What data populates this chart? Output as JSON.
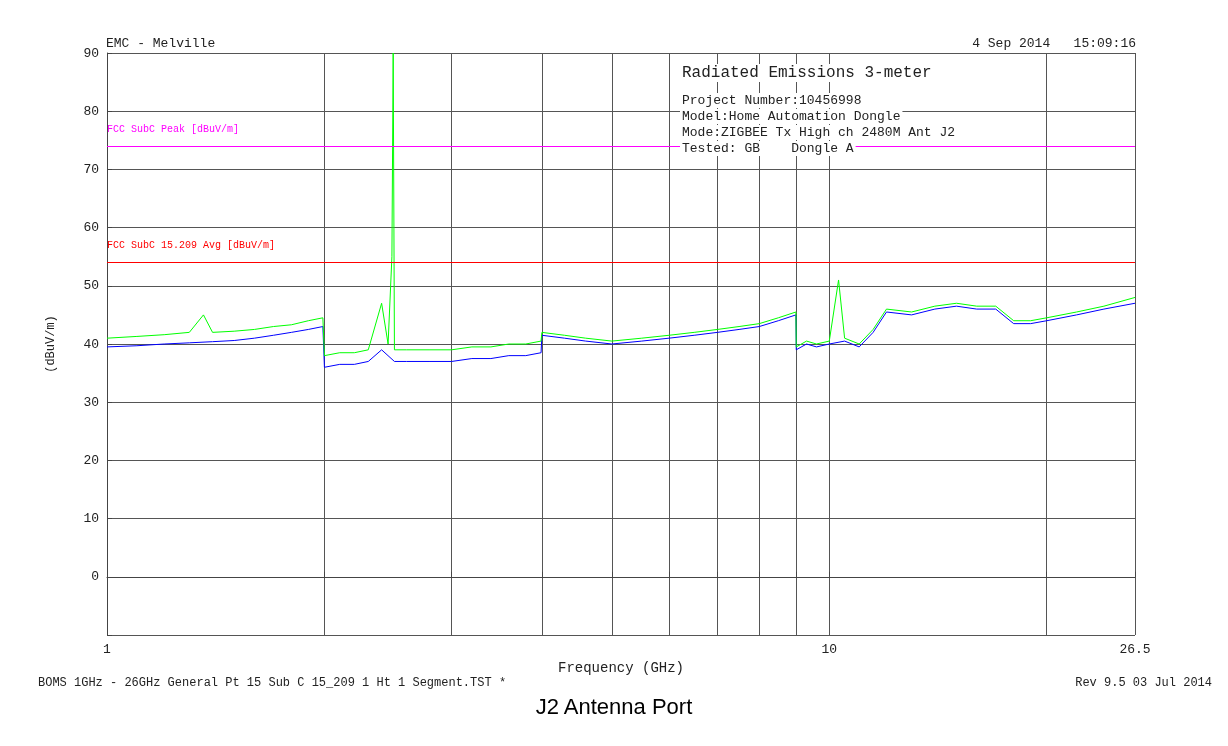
{
  "chart_data": {
    "type": "line",
    "title": "J2 Antenna Port",
    "xlabel": "Frequency (GHz)",
    "ylabel": "(dBuV/m)",
    "annotations": [
      "EMC - Melville",
      "4 Sep 2014   15:09:16",
      "Radiated Emissions 3-meter",
      "Project Number:10456998",
      "Model:Home Automation Dongle",
      "Mode:ZIGBEE Tx High ch 2480M Ant J2",
      "Tested: GB    Dongle A",
      "BOMS 1GHz - 26GHz General Pt 15 Sub C 15_209 1 Ht 1 Segment.TST *",
      "Rev 9.5 03 Jul 2014"
    ],
    "log": "x",
    "grid": true,
    "marker": "none",
    "line_style": "solid",
    "xlim": [
      1,
      26.5
    ],
    "xticks": [
      1,
      {
        "value": 2,
        "label": null
      },
      {
        "value": 3,
        "label": null
      },
      {
        "value": 4,
        "label": null
      },
      {
        "value": 5,
        "label": null
      },
      {
        "value": 6,
        "label": null
      },
      {
        "value": 7,
        "label": null
      },
      {
        "value": 8,
        "label": null
      },
      {
        "value": 9,
        "label": null
      },
      10,
      {
        "value": 20,
        "label": null
      },
      26.5
    ],
    "ylim": [
      -10,
      90
    ],
    "yticks": [
      {
        "value": -10,
        "label": null
      },
      0,
      10,
      20,
      30,
      40,
      50,
      60,
      70,
      80,
      90
    ],
    "ref_lines": [
      {
        "axis": "y",
        "value": 74,
        "label": "FCC SubC Peak [dBuV/m]",
        "color": "#ff00ff"
      },
      {
        "axis": "y",
        "value": 54,
        "label": "FCC SubC 15.209 Avg [dBuV/m]",
        "color": "#ff0000"
      }
    ],
    "series": [
      {
        "color": "#0000ff",
        "x": [
          1,
          1.1,
          1.2,
          1.3,
          1.4,
          1.5,
          1.6,
          1.7,
          1.8,
          1.9,
          1.99,
          2.0,
          2.1,
          2.2,
          2.3,
          2.4,
          2.5,
          2.6,
          2.8,
          3.0,
          3.2,
          3.4,
          3.6,
          3.8,
          3.99,
          4.0,
          4.3,
          4.6,
          5.0,
          5.5,
          6.0,
          6.5,
          7.0,
          7.5,
          8.0,
          8.5,
          8.99,
          9.0,
          9.3,
          9.6,
          10.0,
          10.5,
          11.0,
          11.5,
          12.0,
          13.0,
          14.0,
          15.0,
          16.0,
          17.0,
          18.0,
          19.0,
          20.0,
          22.0,
          24.0,
          26.5
        ],
        "values": [
          39.5,
          39.7,
          40,
          40.2,
          40.4,
          40.6,
          41,
          41.5,
          42,
          42.5,
          43,
          36,
          36.5,
          36.5,
          37,
          39,
          37,
          37,
          37,
          37,
          37.5,
          37.5,
          38,
          38,
          38.5,
          41.5,
          41,
          40.5,
          40,
          40.5,
          41,
          41.5,
          42,
          42.5,
          43,
          44,
          45,
          39,
          40,
          39.5,
          40,
          40.5,
          39.5,
          42,
          45.5,
          45,
          46,
          46.5,
          46,
          46,
          43.5,
          43.5,
          44,
          45,
          46,
          47
        ]
      },
      {
        "color": "#00ff00",
        "x": [
          1,
          1.1,
          1.2,
          1.3,
          1.36,
          1.4,
          1.5,
          1.6,
          1.7,
          1.8,
          1.9,
          1.99,
          2.0,
          2.1,
          2.2,
          2.3,
          2.4,
          2.45,
          2.48,
          2.49,
          2.5,
          2.52,
          2.6,
          2.8,
          3.0,
          3.2,
          3.4,
          3.6,
          3.8,
          3.99,
          4.0,
          4.3,
          4.6,
          5.0,
          5.5,
          6.0,
          6.5,
          7.0,
          7.5,
          8.0,
          8.5,
          8.99,
          9.0,
          9.3,
          9.6,
          10.0,
          10.3,
          10.5,
          11.0,
          11.5,
          12.0,
          13.0,
          14.0,
          15.0,
          16.0,
          17.0,
          18.0,
          19.0,
          20.0,
          22.0,
          24.0,
          26.5
        ],
        "values": [
          41,
          41.3,
          41.6,
          42,
          45,
          42,
          42.2,
          42.5,
          43,
          43.3,
          44,
          44.5,
          38,
          38.5,
          38.5,
          39,
          47,
          40,
          55,
          90,
          39,
          39,
          39,
          39,
          39,
          39.5,
          39.5,
          40,
          40,
          40.5,
          42,
          41.5,
          41,
          40.5,
          41,
          41.5,
          42,
          42.5,
          43,
          43.5,
          44.5,
          45.5,
          39.5,
          40.5,
          40,
          40.5,
          51,
          41,
          40,
          42.5,
          46,
          45.5,
          46.5,
          47,
          46.5,
          46.5,
          44,
          44,
          44.5,
          45.5,
          46.5,
          48
        ]
      }
    ]
  }
}
